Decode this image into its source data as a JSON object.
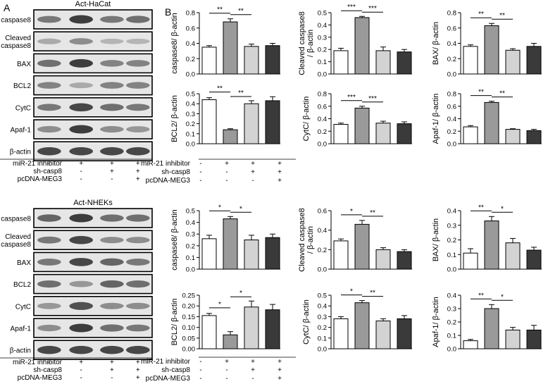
{
  "panel_labels": {
    "a": "A",
    "b": "B"
  },
  "blots": [
    {
      "title": "Act-HaCat",
      "rows": [
        "caspase8",
        "Cleaved\ncaspase8",
        "BAX",
        "BCL2",
        "CytC",
        "Apaf-1",
        "β-actin"
      ],
      "intensity": [
        [
          0.55,
          0.85,
          0.55,
          0.6
        ],
        [
          0.3,
          0.45,
          0.25,
          0.25
        ],
        [
          0.6,
          0.85,
          0.5,
          0.5
        ],
        [
          0.5,
          0.3,
          0.5,
          0.5
        ],
        [
          0.55,
          0.8,
          0.6,
          0.55
        ],
        [
          0.45,
          0.85,
          0.45,
          0.4
        ],
        [
          0.8,
          0.8,
          0.8,
          0.8
        ]
      ]
    },
    {
      "title": "Act-NHEKs",
      "rows": [
        "caspase8",
        "Cleaved\ncaspase8",
        "BAX",
        "BCL2",
        "CytC",
        "Apaf-1",
        "β-actin"
      ],
      "intensity": [
        [
          0.65,
          0.85,
          0.6,
          0.6
        ],
        [
          0.55,
          0.8,
          0.45,
          0.45
        ],
        [
          0.55,
          0.8,
          0.65,
          0.55
        ],
        [
          0.6,
          0.4,
          0.65,
          0.6
        ],
        [
          0.4,
          0.75,
          0.45,
          0.45
        ],
        [
          0.45,
          0.85,
          0.6,
          0.55
        ],
        [
          0.8,
          0.8,
          0.8,
          0.8
        ]
      ]
    }
  ],
  "conditions": [
    {
      "label": "miR-21 inhibitor",
      "signs": [
        "-",
        "+",
        "+",
        "+"
      ]
    },
    {
      "label": "sh-casp8",
      "signs": [
        "-",
        "-",
        "+",
        "+"
      ]
    },
    {
      "label": "pcDNA-MEG3",
      "signs": [
        "-",
        "-",
        "-",
        "+"
      ]
    }
  ],
  "colors": {
    "bars": [
      "#ffffff",
      "#9a9a9a",
      "#d3d3d3",
      "#3a3a3a"
    ]
  },
  "chart_data": [
    {
      "type": "bar",
      "ylabel": "caspase8/ β-actin",
      "ylim": [
        0,
        0.8
      ],
      "yticks": [
        "0.0",
        "0.2",
        "0.4",
        "0.6",
        "0.8"
      ],
      "values": [
        0.35,
        0.68,
        0.36,
        0.37
      ],
      "errors": [
        0.02,
        0.04,
        0.03,
        0.03
      ],
      "brackets": [
        {
          "from": 0,
          "to": 1,
          "label": "**"
        },
        {
          "from": 1,
          "to": 2,
          "label": "**"
        }
      ]
    },
    {
      "type": "bar",
      "ylabel": "Cleaved caspase8\n/ β-actin",
      "ylim": [
        0,
        0.5
      ],
      "yticks": [
        "0.0",
        "0.1",
        "0.2",
        "0.3",
        "0.4",
        "0.5"
      ],
      "values": [
        0.19,
        0.46,
        0.19,
        0.18
      ],
      "errors": [
        0.02,
        0.01,
        0.03,
        0.02
      ],
      "brackets": [
        {
          "from": 0,
          "to": 1,
          "label": "***"
        },
        {
          "from": 1,
          "to": 2,
          "label": "***"
        }
      ]
    },
    {
      "type": "bar",
      "ylabel": "BAX/ β-actin",
      "ylim": [
        0,
        0.8
      ],
      "yticks": [
        "0.0",
        "0.2",
        "0.4",
        "0.6",
        "0.8"
      ],
      "values": [
        0.36,
        0.63,
        0.31,
        0.36
      ],
      "errors": [
        0.02,
        0.03,
        0.02,
        0.04
      ],
      "brackets": [
        {
          "from": 0,
          "to": 1,
          "label": "**"
        },
        {
          "from": 1,
          "to": 2,
          "label": "**"
        }
      ]
    },
    {
      "type": "bar",
      "ylabel": "BCL2/ β-actin",
      "ylim": [
        0,
        0.5
      ],
      "yticks": [
        "0.0",
        "0.1",
        "0.2",
        "0.3",
        "0.4",
        "0.5"
      ],
      "values": [
        0.44,
        0.14,
        0.4,
        0.43
      ],
      "errors": [
        0.02,
        0.01,
        0.03,
        0.04
      ],
      "brackets": [
        {
          "from": 0,
          "to": 1,
          "label": "**"
        },
        {
          "from": 1,
          "to": 2,
          "label": "**"
        }
      ]
    },
    {
      "type": "bar",
      "ylabel": "CytC/ β-actin",
      "ylim": [
        0,
        0.8
      ],
      "yticks": [
        "0.0",
        "0.2",
        "0.4",
        "0.6",
        "0.8"
      ],
      "values": [
        0.31,
        0.57,
        0.33,
        0.32
      ],
      "errors": [
        0.02,
        0.03,
        0.03,
        0.03
      ],
      "brackets": [
        {
          "from": 0,
          "to": 1,
          "label": "***"
        },
        {
          "from": 1,
          "to": 2,
          "label": "***"
        }
      ]
    },
    {
      "type": "bar",
      "ylabel": "Apaf-1/ β-actin",
      "ylim": [
        0,
        0.8
      ],
      "yticks": [
        "0.0",
        "0.2",
        "0.4",
        "0.6",
        "0.8"
      ],
      "values": [
        0.27,
        0.66,
        0.23,
        0.21
      ],
      "errors": [
        0.02,
        0.02,
        0.01,
        0.02
      ],
      "brackets": [
        {
          "from": 0,
          "to": 1,
          "label": "**"
        },
        {
          "from": 1,
          "to": 2,
          "label": "**"
        }
      ]
    },
    {
      "type": "bar",
      "ylabel": "caspase8/ β-actin",
      "ylim": [
        0,
        0.5
      ],
      "yticks": [
        "0.0",
        "0.1",
        "0.2",
        "0.3",
        "0.4",
        "0.5"
      ],
      "values": [
        0.26,
        0.43,
        0.25,
        0.27
      ],
      "errors": [
        0.03,
        0.02,
        0.04,
        0.03
      ],
      "brackets": [
        {
          "from": 0,
          "to": 1,
          "label": "*"
        },
        {
          "from": 1,
          "to": 2,
          "label": "*"
        }
      ]
    },
    {
      "type": "bar",
      "ylabel": "Cleaved caspase8\n/ β-actin",
      "ylim": [
        0,
        0.6
      ],
      "yticks": [
        "0.0",
        "0.2",
        "0.4",
        "0.6"
      ],
      "values": [
        0.29,
        0.46,
        0.2,
        0.18
      ],
      "errors": [
        0.02,
        0.04,
        0.02,
        0.02
      ],
      "brackets": [
        {
          "from": 0,
          "to": 1,
          "label": "*"
        },
        {
          "from": 1,
          "to": 2,
          "label": "**"
        }
      ]
    },
    {
      "type": "bar",
      "ylabel": "BAX/ β-actin",
      "ylim": [
        0,
        0.4
      ],
      "yticks": [
        "0.0",
        "0.1",
        "0.2",
        "0.3",
        "0.4"
      ],
      "values": [
        0.11,
        0.33,
        0.18,
        0.13
      ],
      "errors": [
        0.03,
        0.03,
        0.03,
        0.02
      ],
      "brackets": [
        {
          "from": 0,
          "to": 1,
          "label": "**"
        },
        {
          "from": 1,
          "to": 2,
          "label": "*"
        }
      ]
    },
    {
      "type": "bar",
      "ylabel": "BCL2/ β-actin",
      "ylim": [
        0,
        0.25
      ],
      "yticks": [
        "0.00",
        "0.05",
        "0.10",
        "0.15",
        "0.20",
        "0.25"
      ],
      "values": [
        0.155,
        0.065,
        0.195,
        0.182
      ],
      "errors": [
        0.01,
        0.015,
        0.028,
        0.025
      ],
      "brackets": [
        {
          "from": 0,
          "to": 1,
          "label": "*"
        },
        {
          "from": 1,
          "to": 2,
          "label": "*"
        }
      ]
    },
    {
      "type": "bar",
      "ylabel": "CytC/ β-actin",
      "ylim": [
        0,
        0.5
      ],
      "yticks": [
        "0.0",
        "0.1",
        "0.2",
        "0.3",
        "0.4",
        "0.5"
      ],
      "values": [
        0.28,
        0.43,
        0.26,
        0.28
      ],
      "errors": [
        0.02,
        0.02,
        0.02,
        0.03
      ],
      "brackets": [
        {
          "from": 0,
          "to": 1,
          "label": "*"
        },
        {
          "from": 1,
          "to": 2,
          "label": "**"
        }
      ]
    },
    {
      "type": "bar",
      "ylabel": "Apaf-1/ β-actin",
      "ylim": [
        0,
        0.4
      ],
      "yticks": [
        "0.0",
        "0.1",
        "0.2",
        "0.3",
        "0.4"
      ],
      "values": [
        0.06,
        0.3,
        0.14,
        0.14
      ],
      "errors": [
        0.01,
        0.03,
        0.02,
        0.035
      ],
      "brackets": [
        {
          "from": 0,
          "to": 1,
          "label": "**"
        },
        {
          "from": 1,
          "to": 2,
          "label": "*"
        }
      ]
    }
  ]
}
